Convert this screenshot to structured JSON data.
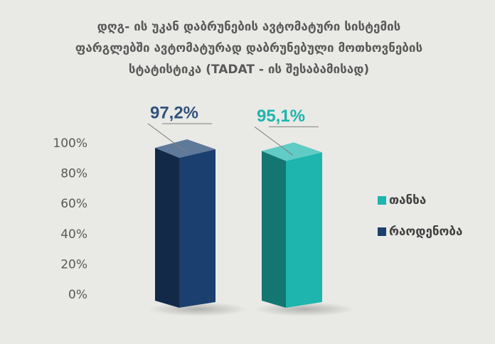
{
  "chart_data": {
    "type": "bar3d",
    "title": [
      "დღგ- ის უკან დაბრუნების ავტომატური სისტემის",
      "ფარგლებში ავტომატურად დაბრუნებული მოთხოვნების",
      "სტატისტიკა (TADAT - ის შესაბამისად)"
    ],
    "series": [
      {
        "name": "თანხა",
        "color": "#1db5ad",
        "values": [
          95.1
        ],
        "value_labels": [
          "95,1%"
        ]
      },
      {
        "name": "რაოდენობა",
        "color": "#1b3f6e",
        "values": [
          97.2
        ],
        "value_labels": [
          "97,2%"
        ]
      }
    ],
    "ylim": [
      0,
      100
    ],
    "yticks": [
      {
        "value": 0,
        "label": "0%"
      },
      {
        "value": 20,
        "label": "20%"
      },
      {
        "value": 40,
        "label": "40%"
      },
      {
        "value": 60,
        "label": "60%"
      },
      {
        "value": 80,
        "label": "80%"
      },
      {
        "value": 100,
        "label": "100%"
      }
    ],
    "grid": false,
    "legend": "right"
  }
}
